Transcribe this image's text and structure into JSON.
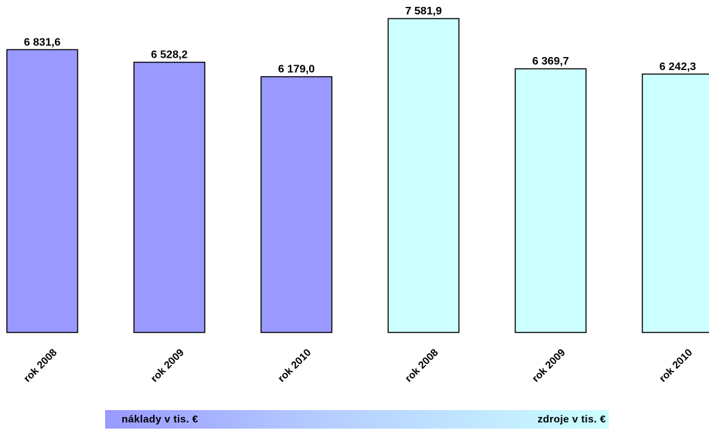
{
  "chart_data": {
    "type": "bar",
    "categories": [
      "rok 2008",
      "rok 2009",
      "rok 2010",
      "rok 2008",
      "rok 2009",
      "rok 2010"
    ],
    "values": [
      6831.6,
      6528.2,
      6179.0,
      7581.9,
      6369.7,
      6242.3
    ],
    "value_labels": [
      "6 831,6",
      "6 528,2",
      "6 179,0",
      "7 581,9",
      "6 369,7",
      "6 242,3"
    ],
    "groups": [
      {
        "name": "náklady v tis. €",
        "indices": [
          0,
          1,
          2
        ],
        "color": "#9999ff"
      },
      {
        "name": "zdroje v tis. €",
        "indices": [
          3,
          4,
          5
        ],
        "color": "#ccffff"
      }
    ],
    "title": "",
    "xlabel": "",
    "ylabel": "",
    "ylim": [
      0,
      7700
    ],
    "grid": false,
    "legend": "bottom"
  },
  "legend": {
    "left_label": "náklady v tis. €",
    "right_label": "zdroje v tis. €"
  },
  "colors": {
    "costs": "#9999ff",
    "sources": "#ccffff",
    "stroke": "#000000"
  }
}
